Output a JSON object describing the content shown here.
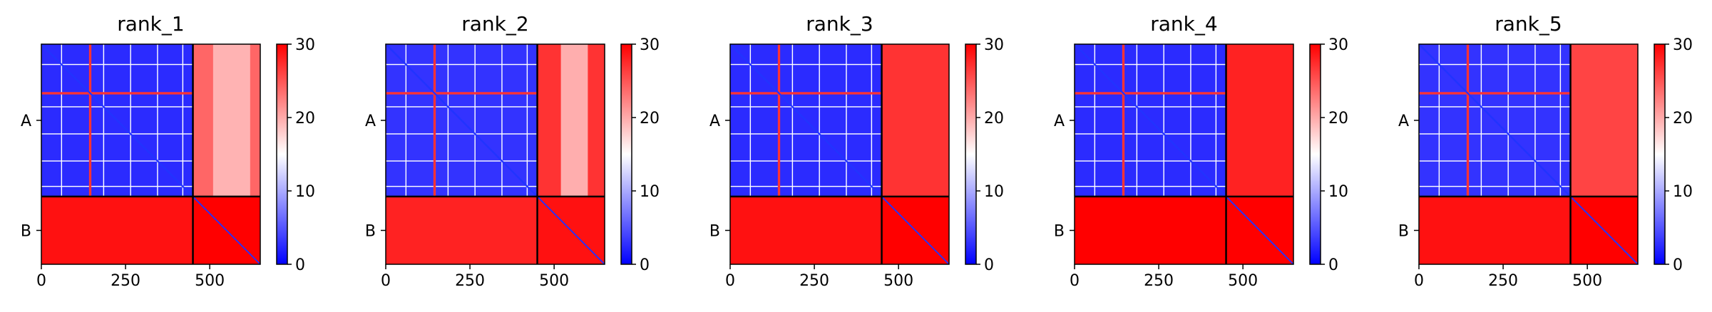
{
  "chart_data": [
    {
      "type": "heatmap",
      "title": "rank_1",
      "chains": [
        "A",
        "B"
      ],
      "chain_lengths": [
        450,
        200
      ],
      "x_ticks": [
        0,
        250,
        500
      ],
      "colorbar": {
        "range": [
          0,
          30
        ],
        "ticks": [
          0,
          10,
          20,
          30
        ],
        "colors": [
          "#0000ff",
          "#ffffff",
          "#ff0000"
        ]
      },
      "cells": {
        "AA": {
          "base": 2.5,
          "mid_bands": [
            60,
            185,
            265,
            345,
            420
          ],
          "hot_bands": [
            145
          ],
          "diag_width": 5
        },
        "AB": {
          "base": 24,
          "light_region": [
            510,
            620
          ]
        },
        "BA": {
          "base": 29
        },
        "BB": {
          "base": 30,
          "diag_width": 4
        }
      }
    },
    {
      "type": "heatmap",
      "title": "rank_2",
      "chains": [
        "A",
        "B"
      ],
      "chain_lengths": [
        450,
        200
      ],
      "x_ticks": [
        0,
        250,
        500
      ],
      "colorbar": {
        "range": [
          0,
          30
        ],
        "ticks": [
          0,
          10,
          20,
          30
        ],
        "colors": [
          "#0000ff",
          "#ffffff",
          "#ff0000"
        ]
      },
      "cells": {
        "AA": {
          "base": 3,
          "mid_bands": [
            60,
            185,
            265,
            345,
            420
          ],
          "hot_bands": [
            145
          ],
          "diag_width": 5
        },
        "AB": {
          "base": 27,
          "light_region": [
            520,
            600
          ]
        },
        "BA": {
          "base": 28
        },
        "BB": {
          "base": 29,
          "diag_width": 4
        }
      }
    },
    {
      "type": "heatmap",
      "title": "rank_3",
      "chains": [
        "A",
        "B"
      ],
      "chain_lengths": [
        450,
        200
      ],
      "x_ticks": [
        0,
        250,
        500
      ],
      "colorbar": {
        "range": [
          0,
          30
        ],
        "ticks": [
          0,
          10,
          20,
          30
        ],
        "colors": [
          "#0000ff",
          "#ffffff",
          "#ff0000"
        ]
      },
      "cells": {
        "AA": {
          "base": 2.5,
          "mid_bands": [
            60,
            185,
            265,
            345,
            420
          ],
          "hot_bands": [
            145
          ],
          "diag_width": 5
        },
        "AB": {
          "base": 27
        },
        "BA": {
          "base": 29
        },
        "BB": {
          "base": 30,
          "diag_width": 4
        }
      }
    },
    {
      "type": "heatmap",
      "title": "rank_4",
      "chains": [
        "A",
        "B"
      ],
      "chain_lengths": [
        450,
        200
      ],
      "x_ticks": [
        0,
        250,
        500
      ],
      "colorbar": {
        "range": [
          0,
          30
        ],
        "ticks": [
          0,
          10,
          20,
          30
        ],
        "colors": [
          "#0000ff",
          "#ffffff",
          "#ff0000"
        ]
      },
      "cells": {
        "AA": {
          "base": 2.5,
          "mid_bands": [
            60,
            185,
            265,
            345,
            420
          ],
          "hot_bands": [
            145
          ],
          "diag_width": 5
        },
        "AB": {
          "base": 28
        },
        "BA": {
          "base": 30
        },
        "BB": {
          "base": 30,
          "diag_width": 4
        }
      }
    },
    {
      "type": "heatmap",
      "title": "rank_5",
      "chains": [
        "A",
        "B"
      ],
      "chain_lengths": [
        450,
        200
      ],
      "x_ticks": [
        0,
        250,
        500
      ],
      "colorbar": {
        "range": [
          0,
          30
        ],
        "ticks": [
          0,
          10,
          20,
          30
        ],
        "colors": [
          "#0000ff",
          "#ffffff",
          "#ff0000"
        ]
      },
      "cells": {
        "AA": {
          "base": 3,
          "mid_bands": [
            60,
            185,
            265,
            345,
            420
          ],
          "hot_bands": [
            145
          ],
          "diag_width": 5
        },
        "AB": {
          "base": 26
        },
        "BA": {
          "base": 29
        },
        "BB": {
          "base": 30,
          "diag_width": 4
        }
      }
    }
  ]
}
